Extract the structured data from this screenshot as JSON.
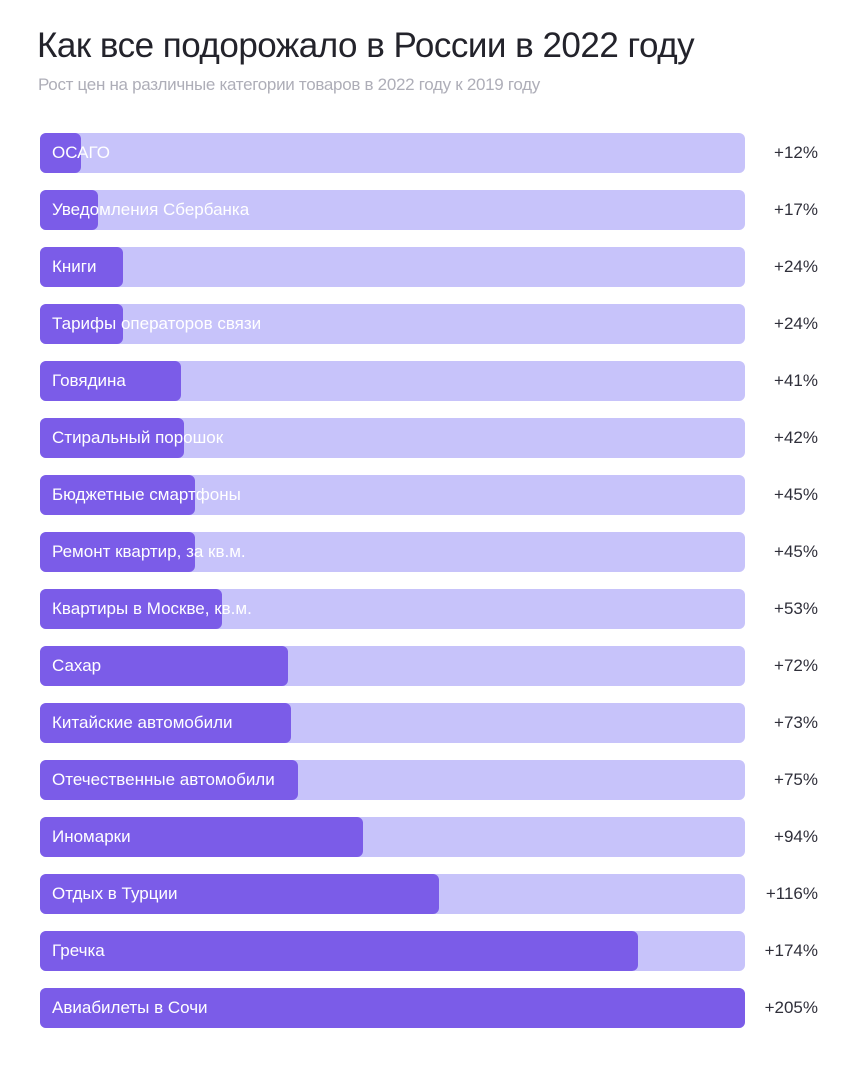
{
  "chart_data": {
    "type": "bar",
    "orientation": "horizontal",
    "title": "Как все подорожало в России в 2022 году",
    "subtitle": "Рост цен на различные категории товаров в 2022 году к 2019 году",
    "categories": [
      "ОСАГО",
      "Уведомления Сбербанка",
      "Книги",
      "Тарифы операторов связи",
      "Говядина",
      "Стиральный порошок",
      "Бюджетные смартфоны",
      "Ремонт квартир, за кв.м.",
      "Квартиры в Москве, кв.м.",
      "Сахар",
      "Китайские автомобили",
      "Отечественные автомобили",
      "Иномарки",
      "Отдых в Турции",
      "Гречка",
      "Авиабилеты в Сочи"
    ],
    "values": [
      12,
      17,
      24,
      24,
      41,
      42,
      45,
      45,
      53,
      72,
      73,
      75,
      94,
      116,
      174,
      205
    ],
    "value_labels": [
      "+12%",
      "+17%",
      "+24%",
      "+24%",
      "+41%",
      "+42%",
      "+45%",
      "+45%",
      "+53%",
      "+72%",
      "+73%",
      "+75%",
      "+94%",
      "+116%",
      "+174%",
      "+205%"
    ],
    "xlim": [
      0,
      205
    ],
    "grid": false,
    "colors": {
      "fill": "#7b5ce8",
      "track": "#c7c3fa"
    }
  }
}
